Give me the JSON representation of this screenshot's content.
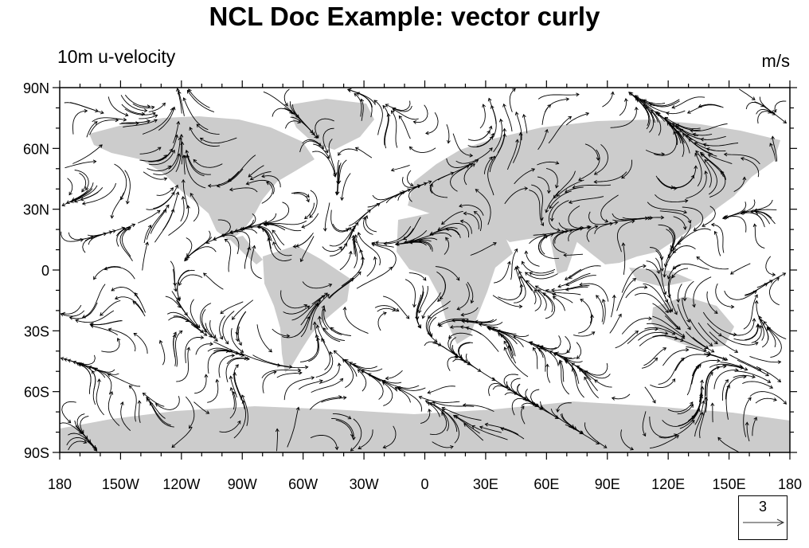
{
  "title": "NCL Doc Example:  vector curly",
  "left_string": "10m u-velocity",
  "right_string": "m/s",
  "y_tick_labels": [
    "90N",
    "60N",
    "30N",
    "0",
    "30S",
    "60S",
    "90S"
  ],
  "x_tick_labels": [
    "180",
    "150W",
    "120W",
    "90W",
    "60W",
    "30W",
    "0",
    "30E",
    "60E",
    "90E",
    "120E",
    "150E",
    "180"
  ],
  "reference_vector": {
    "magnitude": "3"
  },
  "map": {
    "lon_range": [
      -180,
      180
    ],
    "lat_range": [
      -90,
      90
    ],
    "projection": "cylindrical-equidistant",
    "land_color": "#cccccc",
    "vector_color": "#000000",
    "vector_style": "curly"
  }
}
